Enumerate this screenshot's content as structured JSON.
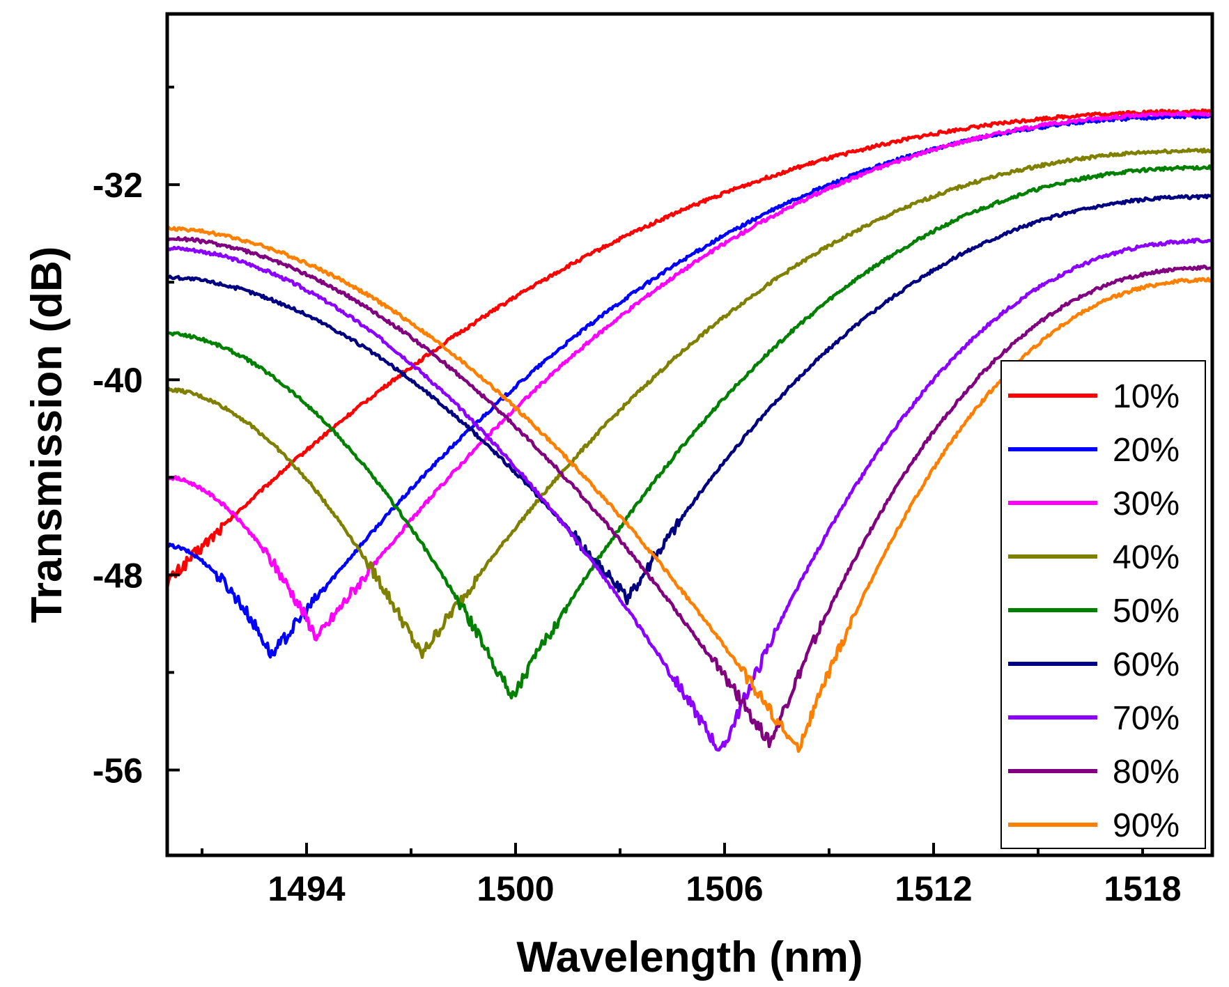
{
  "chart_data": {
    "type": "line",
    "title": "",
    "xlabel": "Wavelength (nm)",
    "ylabel": "Transmission (dB)",
    "xlim": [
      1490,
      1520
    ],
    "ylim": [
      -59.5,
      -25
    ],
    "xticks": [
      1494,
      1500,
      1506,
      1512,
      1518
    ],
    "xtick_labels": [
      "1494",
      "1500",
      "1506",
      "1512",
      "1518"
    ],
    "x_minor_ticks": [
      1491,
      1497,
      1503,
      1509,
      1515
    ],
    "yticks": [
      -32,
      -40,
      -48,
      -56
    ],
    "ytick_labels": [
      "-32",
      "-40",
      "-48",
      "-56"
    ],
    "y_minor_ticks": [
      -28,
      -36,
      -44,
      -52
    ],
    "grid": false,
    "legend_position": "bottom-right",
    "series": [
      {
        "name": "10%",
        "color": "#ff0000",
        "dip": 1490.0,
        "depth": -48.3,
        "left_end": -48.3,
        "right_end": -29.0
      },
      {
        "name": "20%",
        "color": "#0000ff",
        "dip": 1493.0,
        "depth": -51.3,
        "left_end": -46.8,
        "right_end": -29.2
      },
      {
        "name": "30%",
        "color": "#ff00ff",
        "dip": 1494.3,
        "depth": -50.6,
        "left_end": -44.0,
        "right_end": -29.1
      },
      {
        "name": "40%",
        "color": "#808000",
        "dip": 1497.3,
        "depth": -51.3,
        "left_end": -40.4,
        "right_end": -30.6
      },
      {
        "name": "50%",
        "color": "#008000",
        "dip": 1499.9,
        "depth": -53.0,
        "left_end": -38.1,
        "right_end": -31.3
      },
      {
        "name": "60%",
        "color": "#000080",
        "dip": 1503.2,
        "depth": -49.0,
        "left_end": -35.8,
        "right_end": -32.5
      },
      {
        "name": "70%",
        "color": "#8b00ff",
        "dip": 1505.9,
        "depth": -55.3,
        "left_end": -34.6,
        "right_end": -34.3
      },
      {
        "name": "80%",
        "color": "#800080",
        "dip": 1507.3,
        "depth": -54.9,
        "left_end": -34.2,
        "right_end": -35.4
      },
      {
        "name": "90%",
        "color": "#ff8000",
        "dip": 1508.1,
        "depth": -55.2,
        "left_end": -33.8,
        "right_end": -35.9
      }
    ]
  }
}
